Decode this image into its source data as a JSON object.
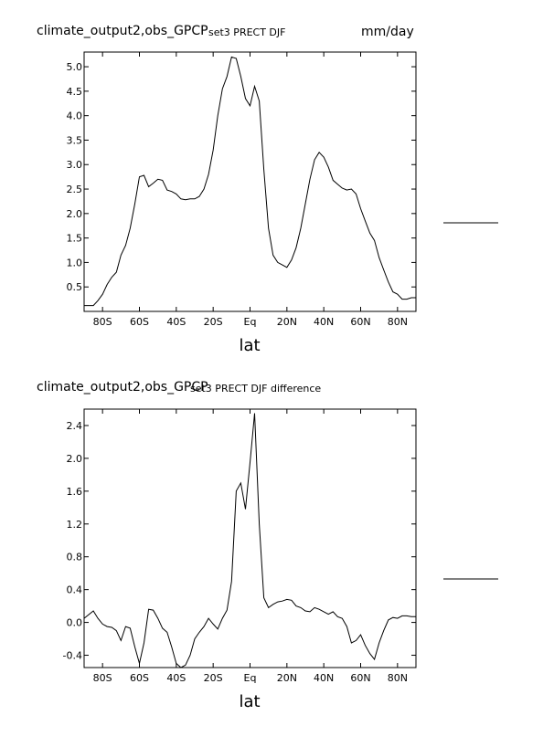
{
  "chart_data": [
    {
      "type": "line",
      "title": "climate_output2,obs_GPCP",
      "subtitle": "set3 PRECT DJF",
      "units": "mm/day",
      "xlabel": "lat",
      "ylabel": "",
      "xlim": [
        -90,
        90
      ],
      "ylim": [
        0.0,
        5.3
      ],
      "x_ticks": [
        -80,
        -60,
        -40,
        -20,
        0,
        20,
        40,
        60,
        80
      ],
      "x_tick_labels": [
        "80S",
        "60S",
        "40S",
        "20S",
        "Eq",
        "20N",
        "40N",
        "60N",
        "80N"
      ],
      "y_ticks": [
        0.5,
        1.0,
        1.5,
        2.0,
        2.5,
        3.0,
        3.5,
        4.0,
        4.5,
        5.0
      ],
      "y_tick_labels": [
        "0.5",
        "1.0",
        "1.5",
        "2.0",
        "2.5",
        "3.0",
        "3.5",
        "4.0",
        "4.5",
        "5.0"
      ],
      "grid": false,
      "legend": "right",
      "series": [
        {
          "x": [
            -90,
            -85,
            -82.5,
            -80,
            -77.5,
            -75,
            -72.5,
            -70,
            -67.5,
            -65,
            -62.5,
            -60,
            -57.5,
            -55,
            -52.5,
            -50,
            -47.5,
            -45,
            -42.5,
            -40,
            -37.5,
            -35,
            -32.5,
            -30,
            -27.5,
            -25,
            -22.5,
            -20,
            -17.5,
            -15,
            -12.5,
            -10,
            -7.5,
            -5,
            -2.5,
            0,
            2.5,
            5,
            7.5,
            10,
            12.5,
            15,
            17.5,
            20,
            22.5,
            25,
            27.5,
            30,
            32.5,
            35,
            37.5,
            40,
            42.5,
            45,
            47.5,
            50,
            52.5,
            55,
            57.5,
            60,
            62.5,
            65,
            67.5,
            70,
            72.5,
            75,
            77.5,
            80,
            82.5,
            85,
            87.5,
            90
          ],
          "y": [
            0.12,
            0.12,
            0.22,
            0.35,
            0.55,
            0.7,
            0.8,
            1.15,
            1.35,
            1.7,
            2.2,
            2.75,
            2.78,
            2.55,
            2.62,
            2.7,
            2.68,
            2.48,
            2.45,
            2.4,
            2.3,
            2.28,
            2.3,
            2.3,
            2.35,
            2.5,
            2.8,
            3.3,
            4.0,
            4.55,
            4.8,
            5.2,
            5.17,
            4.8,
            4.35,
            4.2,
            4.6,
            4.3,
            2.9,
            1.7,
            1.15,
            1.0,
            0.95,
            0.9,
            1.05,
            1.3,
            1.7,
            2.2,
            2.7,
            3.1,
            3.25,
            3.15,
            2.95,
            2.68,
            2.6,
            2.52,
            2.48,
            2.5,
            2.4,
            2.1,
            1.85,
            1.6,
            1.45,
            1.1,
            0.85,
            0.6,
            0.4,
            0.35,
            0.25,
            0.25,
            0.28,
            0.28
          ]
        }
      ]
    },
    {
      "type": "line",
      "title": "climate_output2,obs_GPCP",
      "subtitle": "set3 PRECT DJF difference",
      "xlabel": "lat",
      "ylabel": "",
      "xlim": [
        -90,
        90
      ],
      "ylim": [
        -0.55,
        2.6
      ],
      "x_ticks": [
        -80,
        -60,
        -40,
        -20,
        0,
        20,
        40,
        60,
        80
      ],
      "x_tick_labels": [
        "80S",
        "60S",
        "40S",
        "20S",
        "Eq",
        "20N",
        "40N",
        "60N",
        "80N"
      ],
      "y_ticks": [
        -0.4,
        0.0,
        0.4,
        0.8,
        1.2,
        1.6,
        2.0,
        2.4
      ],
      "y_tick_labels": [
        "-0.4",
        "0.0",
        "0.4",
        "0.8",
        "1.2",
        "1.6",
        "2.0",
        "2.4"
      ],
      "grid": false,
      "legend": "right",
      "series": [
        {
          "x": [
            -90,
            -85,
            -82.5,
            -80,
            -77.5,
            -75,
            -72.5,
            -70,
            -67.5,
            -65,
            -62.5,
            -60,
            -57.5,
            -55,
            -52.5,
            -50,
            -47.5,
            -45,
            -42.5,
            -40,
            -37.5,
            -35,
            -32.5,
            -30,
            -27.5,
            -25,
            -22.5,
            -20,
            -17.5,
            -15,
            -12.5,
            -10,
            -7.5,
            -5,
            -2.5,
            0,
            2.5,
            5,
            7.5,
            10,
            12.5,
            15,
            17.5,
            20,
            22.5,
            25,
            27.5,
            30,
            32.5,
            35,
            37.5,
            40,
            42.5,
            45,
            47.5,
            50,
            52.5,
            55,
            57.5,
            60,
            62.5,
            65,
            67.5,
            70,
            72.5,
            75,
            77.5,
            80,
            82.5,
            85,
            87.5,
            90
          ],
          "y": [
            0.05,
            0.14,
            0.05,
            -0.02,
            -0.05,
            -0.06,
            -0.1,
            -0.22,
            -0.05,
            -0.07,
            -0.3,
            -0.5,
            -0.25,
            0.16,
            0.15,
            0.05,
            -0.07,
            -0.12,
            -0.3,
            -0.5,
            -0.55,
            -0.52,
            -0.4,
            -0.2,
            -0.12,
            -0.05,
            0.05,
            -0.02,
            -0.08,
            0.05,
            0.15,
            0.5,
            1.6,
            1.7,
            1.38,
            1.95,
            2.55,
            1.2,
            0.3,
            0.18,
            0.22,
            0.25,
            0.26,
            0.28,
            0.27,
            0.2,
            0.18,
            0.14,
            0.13,
            0.18,
            0.16,
            0.13,
            0.1,
            0.13,
            0.07,
            0.05,
            -0.05,
            -0.25,
            -0.22,
            -0.15,
            -0.28,
            -0.38,
            -0.45,
            -0.25,
            -0.1,
            0.03,
            0.06,
            0.05,
            0.08,
            0.08,
            0.07,
            0.07
          ]
        }
      ]
    }
  ]
}
